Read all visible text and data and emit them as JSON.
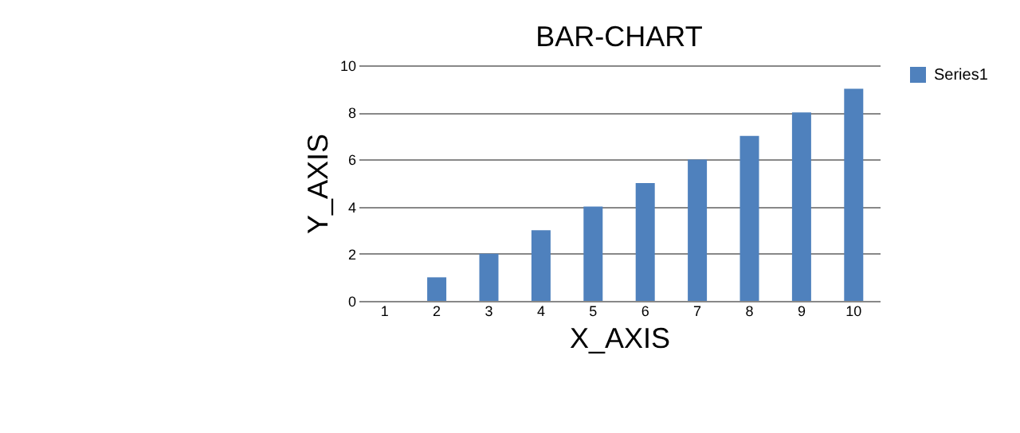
{
  "chart_data": {
    "type": "bar",
    "title": "BAR-CHART",
    "xlabel": "X_AXIS",
    "ylabel": "Y_AXIS",
    "categories": [
      "1",
      "2",
      "3",
      "4",
      "5",
      "6",
      "7",
      "8",
      "9",
      "10"
    ],
    "series": [
      {
        "name": "Series1",
        "color": "#4f81bd",
        "values": [
          0,
          1,
          2,
          3,
          4,
          5,
          6,
          7,
          8,
          9
        ]
      }
    ],
    "ylim": [
      0,
      10
    ],
    "yticks": [
      0,
      2,
      4,
      6,
      8,
      10
    ],
    "grid": "y",
    "legend": "right"
  }
}
